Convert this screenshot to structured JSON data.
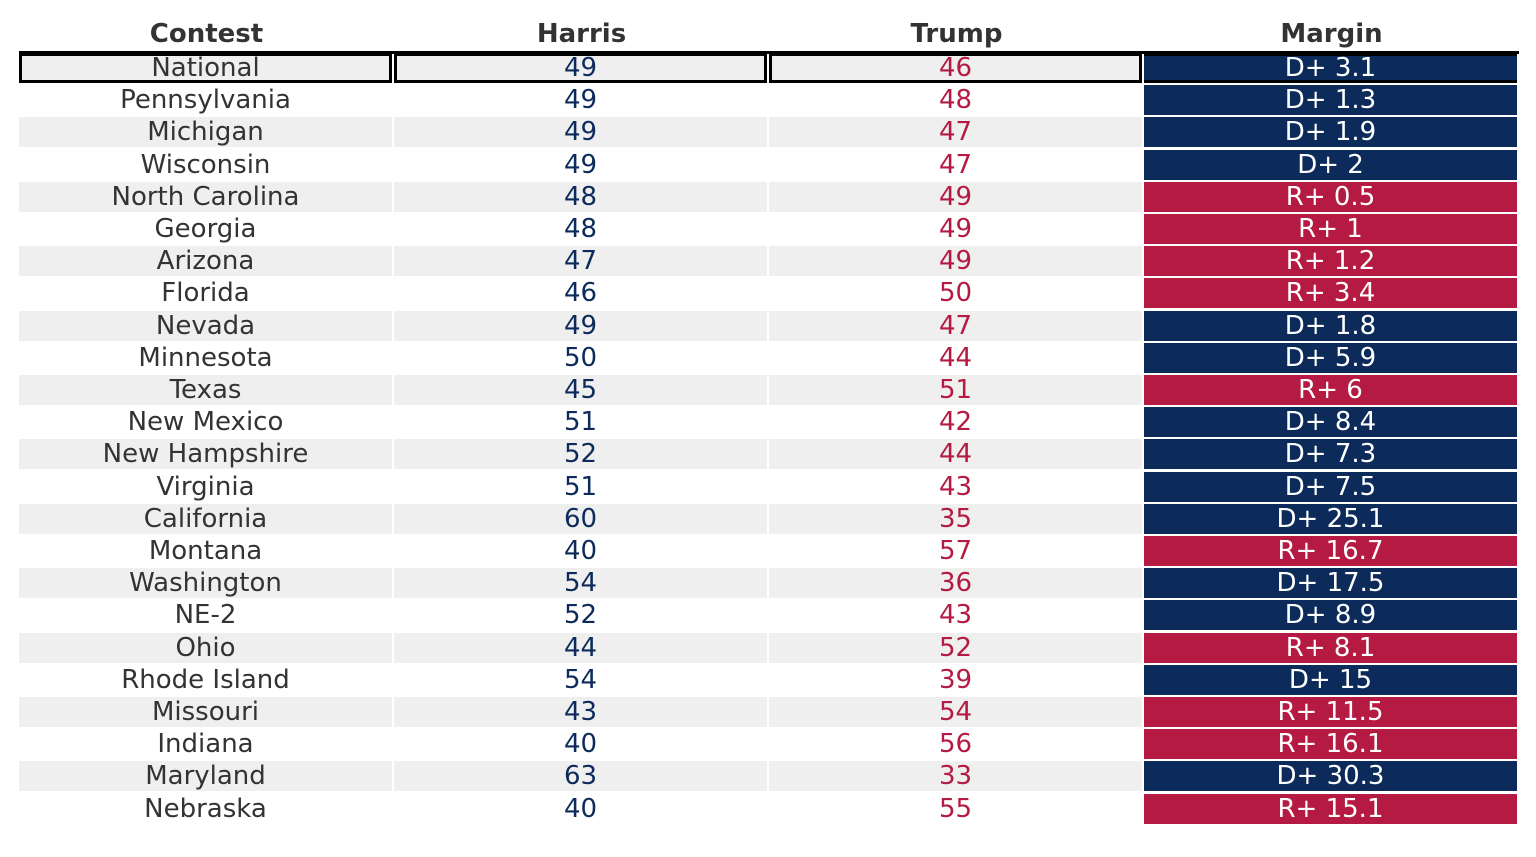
{
  "chart_data": {
    "type": "table",
    "columns": [
      "Contest",
      "Harris",
      "Trump",
      "Margin"
    ],
    "highlight_row": "National",
    "colors": {
      "democrat": "#0c2b5b",
      "republican": "#b51a42",
      "text": "#333333",
      "shade": "#efefef"
    },
    "rows": [
      {
        "contest": "National",
        "harris": "49",
        "trump": "46",
        "margin": "D+ 3.1",
        "party": "D"
      },
      {
        "contest": "Pennsylvania",
        "harris": "49",
        "trump": "48",
        "margin": "D+ 1.3",
        "party": "D"
      },
      {
        "contest": "Michigan",
        "harris": "49",
        "trump": "47",
        "margin": "D+ 1.9",
        "party": "D"
      },
      {
        "contest": "Wisconsin",
        "harris": "49",
        "trump": "47",
        "margin": "D+ 2",
        "party": "D"
      },
      {
        "contest": "North Carolina",
        "harris": "48",
        "trump": "49",
        "margin": "R+ 0.5",
        "party": "R"
      },
      {
        "contest": "Georgia",
        "harris": "48",
        "trump": "49",
        "margin": "R+ 1",
        "party": "R"
      },
      {
        "contest": "Arizona",
        "harris": "47",
        "trump": "49",
        "margin": "R+ 1.2",
        "party": "R"
      },
      {
        "contest": "Florida",
        "harris": "46",
        "trump": "50",
        "margin": "R+ 3.4",
        "party": "R"
      },
      {
        "contest": "Nevada",
        "harris": "49",
        "trump": "47",
        "margin": "D+ 1.8",
        "party": "D"
      },
      {
        "contest": "Minnesota",
        "harris": "50",
        "trump": "44",
        "margin": "D+ 5.9",
        "party": "D"
      },
      {
        "contest": "Texas",
        "harris": "45",
        "trump": "51",
        "margin": "R+ 6",
        "party": "R"
      },
      {
        "contest": "New Mexico",
        "harris": "51",
        "trump": "42",
        "margin": "D+ 8.4",
        "party": "D"
      },
      {
        "contest": "New Hampshire",
        "harris": "52",
        "trump": "44",
        "margin": "D+ 7.3",
        "party": "D"
      },
      {
        "contest": "Virginia",
        "harris": "51",
        "trump": "43",
        "margin": "D+ 7.5",
        "party": "D"
      },
      {
        "contest": "California",
        "harris": "60",
        "trump": "35",
        "margin": "D+ 25.1",
        "party": "D"
      },
      {
        "contest": "Montana",
        "harris": "40",
        "trump": "57",
        "margin": "R+ 16.7",
        "party": "R"
      },
      {
        "contest": "Washington",
        "harris": "54",
        "trump": "36",
        "margin": "D+ 17.5",
        "party": "D"
      },
      {
        "contest": "NE-2",
        "harris": "52",
        "trump": "43",
        "margin": "D+ 8.9",
        "party": "D"
      },
      {
        "contest": "Ohio",
        "harris": "44",
        "trump": "52",
        "margin": "R+ 8.1",
        "party": "R"
      },
      {
        "contest": "Rhode Island",
        "harris": "54",
        "trump": "39",
        "margin": "D+ 15",
        "party": "D"
      },
      {
        "contest": "Missouri",
        "harris": "43",
        "trump": "54",
        "margin": "R+ 11.5",
        "party": "R"
      },
      {
        "contest": "Indiana",
        "harris": "40",
        "trump": "56",
        "margin": "R+ 16.1",
        "party": "R"
      },
      {
        "contest": "Maryland",
        "harris": "63",
        "trump": "33",
        "margin": "D+ 30.3",
        "party": "D"
      },
      {
        "contest": "Nebraska",
        "harris": "40",
        "trump": "55",
        "margin": "R+ 15.1",
        "party": "R"
      }
    ]
  }
}
